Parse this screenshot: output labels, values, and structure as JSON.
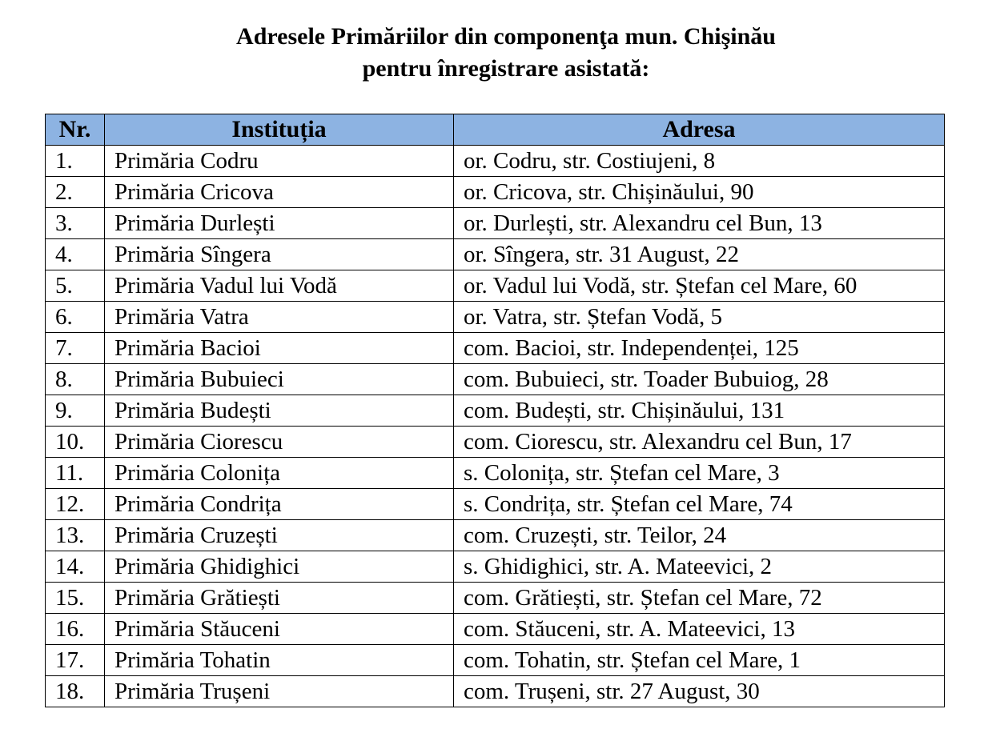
{
  "title": {
    "line1": "Adresele Primăriilor din componenţa mun. Chişinău",
    "line2": "pentru înregistrare asistată:"
  },
  "table": {
    "header_color": "#8db3e2",
    "headers": [
      "Nr.",
      "Instituția",
      "Adresa"
    ],
    "rows": [
      [
        "1.",
        "Primăria Codru",
        "or. Codru, str. Costiujeni, 8"
      ],
      [
        "2.",
        "Primăria Cricova",
        "or. Cricova, str. Chișinăului, 90"
      ],
      [
        "3.",
        "Primăria Durlești",
        "or. Durlești, str. Alexandru cel Bun, 13"
      ],
      [
        "4.",
        "Primăria Sîngera",
        "or. Sîngera, str. 31 August, 22"
      ],
      [
        "5.",
        "Primăria Vadul lui Vodă",
        "or. Vadul lui Vodă, str. Ștefan cel Mare, 60"
      ],
      [
        "6.",
        "Primăria Vatra",
        "or. Vatra, str. Ștefan Vodă, 5"
      ],
      [
        "7.",
        "Primăria Bacioi",
        "com. Bacioi, str. Independenței, 125"
      ],
      [
        "8.",
        "Primăria Bubuieci",
        "com. Bubuieci, str. Toader Bubuiog, 28"
      ],
      [
        "9.",
        "Primăria Budești",
        "com. Budești, str. Chișinăului, 131"
      ],
      [
        "10.",
        "Primăria Ciorescu",
        "com. Ciorescu, str. Alexandru cel Bun, 17"
      ],
      [
        "11.",
        "Primăria Colonița",
        "s. Colonița, str. Ștefan cel Mare, 3"
      ],
      [
        "12.",
        "Primăria Condrița",
        "s. Condrița, str. Ștefan cel Mare, 74"
      ],
      [
        "13.",
        "Primăria Cruzești",
        "com. Cruzești, str. Teilor, 24"
      ],
      [
        "14.",
        "Primăria Ghidighici",
        "s. Ghidighici, str. A. Mateevici, 2"
      ],
      [
        "15.",
        "Primăria Grătiești",
        "com. Grătiești, str. Ștefan cel Mare, 72"
      ],
      [
        "16.",
        "Primăria Stăuceni",
        "com. Stăuceni, str. A. Mateevici, 13"
      ],
      [
        "17.",
        "Primăria Tohatin",
        "com. Tohatin, str. Ștefan cel Mare, 1"
      ],
      [
        "18.",
        "Primăria Trușeni",
        "com. Trușeni, str. 27 August, 30"
      ]
    ]
  }
}
